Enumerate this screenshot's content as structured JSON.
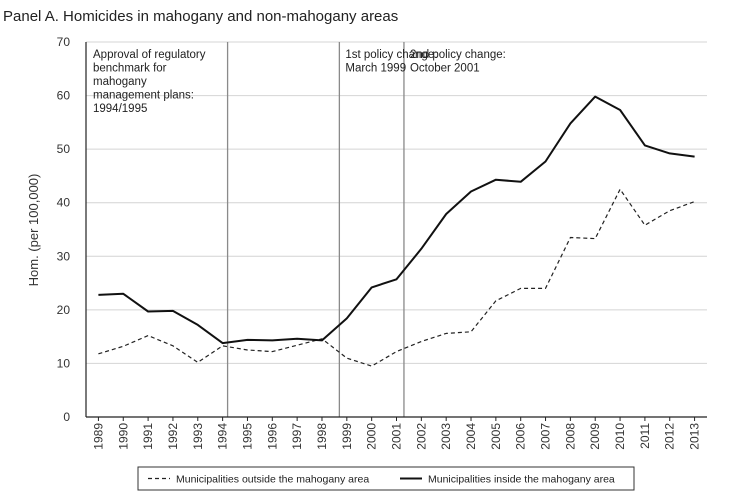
{
  "chart_data": {
    "type": "line",
    "title": "Panel A. Homicides in mahogany and non-mahogany areas",
    "xlabel": "",
    "ylabel": "Hom. (per 100,000)",
    "ylim": [
      0,
      70
    ],
    "yticks": [
      0,
      10,
      20,
      30,
      40,
      50,
      60,
      70
    ],
    "grid": true,
    "legend_position": "bottom",
    "x": [
      1989,
      1990,
      1991,
      1992,
      1993,
      1994,
      1995,
      1996,
      1997,
      1998,
      1999,
      2000,
      2001,
      2002,
      2003,
      2004,
      2005,
      2006,
      2007,
      2008,
      2009,
      2010,
      2011,
      2012,
      2013
    ],
    "series": [
      {
        "name": "Municipalities outside the mahogany area",
        "style": "dashed",
        "color": "#222222",
        "values": [
          11.8,
          13.2,
          15.2,
          13.3,
          10.2,
          13.3,
          12.5,
          12.2,
          13.4,
          14.6,
          11.0,
          9.5,
          12.2,
          14.1,
          15.6,
          15.9,
          21.7,
          24.0,
          24.0,
          33.5,
          33.3,
          42.5,
          35.8,
          38.5,
          40.2
        ]
      },
      {
        "name": "Municipalities inside the mahogany area",
        "style": "solid",
        "color": "#111111",
        "values": [
          22.8,
          23.0,
          19.7,
          19.8,
          17.2,
          13.8,
          14.4,
          14.3,
          14.6,
          14.3,
          18.4,
          24.2,
          25.7,
          31.4,
          37.9,
          42.1,
          44.3,
          43.9,
          47.7,
          54.8,
          59.8,
          57.3,
          50.7,
          49.2,
          48.6
        ]
      }
    ],
    "annotations": [
      {
        "x": 1994.2,
        "lines": [
          "Approval of regulatory",
          "benchmark for",
          "mahogany",
          "management plans:",
          "1994/1995"
        ]
      },
      {
        "x": 1998.7,
        "lines": [
          "1st policy change:",
          "March 1999"
        ]
      },
      {
        "x": 2001.3,
        "lines": [
          "2nd policy change:",
          "October 2001"
        ]
      }
    ]
  }
}
